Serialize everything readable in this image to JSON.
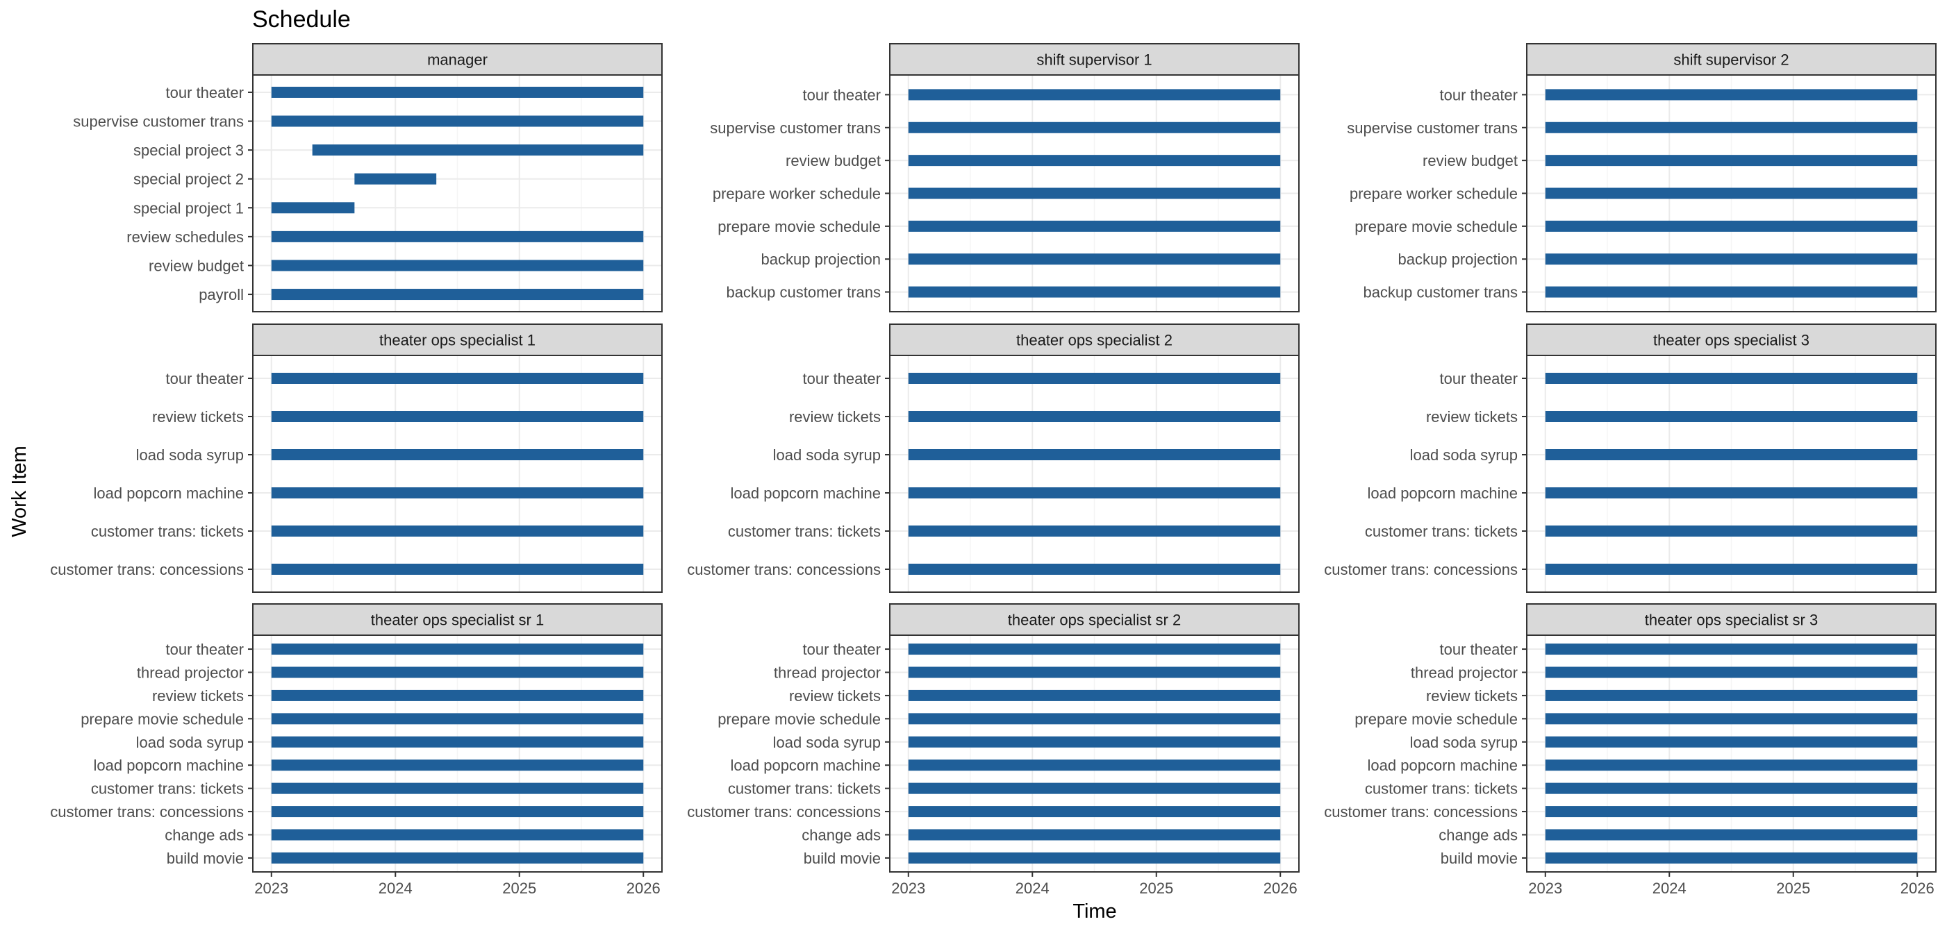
{
  "chart_data": {
    "type": "bar",
    "subtype": "gantt-faceted",
    "title": "Schedule",
    "xlabel": "Time",
    "ylabel": "Work Item",
    "xlim": [
      2022.85,
      2026.15
    ],
    "x_ticks": [
      2023,
      2024,
      2025,
      2026
    ],
    "grid": true,
    "legend": "none",
    "colors": {
      "bar": "#1f5f99",
      "strip_bg": "#d9d9d9",
      "panel_border": "#333333",
      "grid_major": "#ebebeb",
      "grid_minor": "#f5f5f5",
      "text": "#4d4d4d"
    },
    "facets": [
      {
        "name": "manager",
        "tasks": [
          {
            "label": "tour theater",
            "start": 2023.0,
            "end": 2026.0
          },
          {
            "label": "supervise customer trans",
            "start": 2023.0,
            "end": 2026.0
          },
          {
            "label": "special project 3",
            "start": 2023.33,
            "end": 2026.0
          },
          {
            "label": "special project 2",
            "start": 2023.67,
            "end": 2024.33
          },
          {
            "label": "special project 1",
            "start": 2023.0,
            "end": 2023.67
          },
          {
            "label": "review schedules",
            "start": 2023.0,
            "end": 2026.0
          },
          {
            "label": "review budget",
            "start": 2023.0,
            "end": 2026.0
          },
          {
            "label": "payroll",
            "start": 2023.0,
            "end": 2026.0
          }
        ]
      },
      {
        "name": "shift supervisor 1",
        "tasks": [
          {
            "label": "tour theater",
            "start": 2023.0,
            "end": 2026.0
          },
          {
            "label": "supervise customer trans",
            "start": 2023.0,
            "end": 2026.0
          },
          {
            "label": "review budget",
            "start": 2023.0,
            "end": 2026.0
          },
          {
            "label": "prepare worker schedule",
            "start": 2023.0,
            "end": 2026.0
          },
          {
            "label": "prepare movie schedule",
            "start": 2023.0,
            "end": 2026.0
          },
          {
            "label": "backup projection",
            "start": 2023.0,
            "end": 2026.0
          },
          {
            "label": "backup customer trans",
            "start": 2023.0,
            "end": 2026.0
          }
        ]
      },
      {
        "name": "shift supervisor 2",
        "tasks": [
          {
            "label": "tour theater",
            "start": 2023.0,
            "end": 2026.0
          },
          {
            "label": "supervise customer trans",
            "start": 2023.0,
            "end": 2026.0
          },
          {
            "label": "review budget",
            "start": 2023.0,
            "end": 2026.0
          },
          {
            "label": "prepare worker schedule",
            "start": 2023.0,
            "end": 2026.0
          },
          {
            "label": "prepare movie schedule",
            "start": 2023.0,
            "end": 2026.0
          },
          {
            "label": "backup projection",
            "start": 2023.0,
            "end": 2026.0
          },
          {
            "label": "backup customer trans",
            "start": 2023.0,
            "end": 2026.0
          }
        ]
      },
      {
        "name": "theater ops specialist 1",
        "tasks": [
          {
            "label": "tour theater",
            "start": 2023.0,
            "end": 2026.0
          },
          {
            "label": "review tickets",
            "start": 2023.0,
            "end": 2026.0
          },
          {
            "label": "load soda syrup",
            "start": 2023.0,
            "end": 2026.0
          },
          {
            "label": "load popcorn machine",
            "start": 2023.0,
            "end": 2026.0
          },
          {
            "label": "customer trans: tickets",
            "start": 2023.0,
            "end": 2026.0
          },
          {
            "label": "customer trans: concessions",
            "start": 2023.0,
            "end": 2026.0
          }
        ]
      },
      {
        "name": "theater ops specialist 2",
        "tasks": [
          {
            "label": "tour theater",
            "start": 2023.0,
            "end": 2026.0
          },
          {
            "label": "review tickets",
            "start": 2023.0,
            "end": 2026.0
          },
          {
            "label": "load soda syrup",
            "start": 2023.0,
            "end": 2026.0
          },
          {
            "label": "load popcorn machine",
            "start": 2023.0,
            "end": 2026.0
          },
          {
            "label": "customer trans: tickets",
            "start": 2023.0,
            "end": 2026.0
          },
          {
            "label": "customer trans: concessions",
            "start": 2023.0,
            "end": 2026.0
          }
        ]
      },
      {
        "name": "theater ops specialist 3",
        "tasks": [
          {
            "label": "tour theater",
            "start": 2023.0,
            "end": 2026.0
          },
          {
            "label": "review tickets",
            "start": 2023.0,
            "end": 2026.0
          },
          {
            "label": "load soda syrup",
            "start": 2023.0,
            "end": 2026.0
          },
          {
            "label": "load popcorn machine",
            "start": 2023.0,
            "end": 2026.0
          },
          {
            "label": "customer trans: tickets",
            "start": 2023.0,
            "end": 2026.0
          },
          {
            "label": "customer trans: concessions",
            "start": 2023.0,
            "end": 2026.0
          }
        ]
      },
      {
        "name": "theater ops specialist sr 1",
        "tasks": [
          {
            "label": "tour theater",
            "start": 2023.0,
            "end": 2026.0
          },
          {
            "label": "thread projector",
            "start": 2023.0,
            "end": 2026.0
          },
          {
            "label": "review tickets",
            "start": 2023.0,
            "end": 2026.0
          },
          {
            "label": "prepare movie schedule",
            "start": 2023.0,
            "end": 2026.0
          },
          {
            "label": "load soda syrup",
            "start": 2023.0,
            "end": 2026.0
          },
          {
            "label": "load popcorn machine",
            "start": 2023.0,
            "end": 2026.0
          },
          {
            "label": "customer trans: tickets",
            "start": 2023.0,
            "end": 2026.0
          },
          {
            "label": "customer trans: concessions",
            "start": 2023.0,
            "end": 2026.0
          },
          {
            "label": "change ads",
            "start": 2023.0,
            "end": 2026.0
          },
          {
            "label": "build movie",
            "start": 2023.0,
            "end": 2026.0
          }
        ]
      },
      {
        "name": "theater ops specialist sr 2",
        "tasks": [
          {
            "label": "tour theater",
            "start": 2023.0,
            "end": 2026.0
          },
          {
            "label": "thread projector",
            "start": 2023.0,
            "end": 2026.0
          },
          {
            "label": "review tickets",
            "start": 2023.0,
            "end": 2026.0
          },
          {
            "label": "prepare movie schedule",
            "start": 2023.0,
            "end": 2026.0
          },
          {
            "label": "load soda syrup",
            "start": 2023.0,
            "end": 2026.0
          },
          {
            "label": "load popcorn machine",
            "start": 2023.0,
            "end": 2026.0
          },
          {
            "label": "customer trans: tickets",
            "start": 2023.0,
            "end": 2026.0
          },
          {
            "label": "customer trans: concessions",
            "start": 2023.0,
            "end": 2026.0
          },
          {
            "label": "change ads",
            "start": 2023.0,
            "end": 2026.0
          },
          {
            "label": "build movie",
            "start": 2023.0,
            "end": 2026.0
          }
        ]
      },
      {
        "name": "theater ops specialist sr 3",
        "tasks": [
          {
            "label": "tour theater",
            "start": 2023.0,
            "end": 2026.0
          },
          {
            "label": "thread projector",
            "start": 2023.0,
            "end": 2026.0
          },
          {
            "label": "review tickets",
            "start": 2023.0,
            "end": 2026.0
          },
          {
            "label": "prepare movie schedule",
            "start": 2023.0,
            "end": 2026.0
          },
          {
            "label": "load soda syrup",
            "start": 2023.0,
            "end": 2026.0
          },
          {
            "label": "load popcorn machine",
            "start": 2023.0,
            "end": 2026.0
          },
          {
            "label": "customer trans: tickets",
            "start": 2023.0,
            "end": 2026.0
          },
          {
            "label": "customer trans: concessions",
            "start": 2023.0,
            "end": 2026.0
          },
          {
            "label": "change ads",
            "start": 2023.0,
            "end": 2026.0
          },
          {
            "label": "build movie",
            "start": 2023.0,
            "end": 2026.0
          }
        ]
      }
    ]
  }
}
